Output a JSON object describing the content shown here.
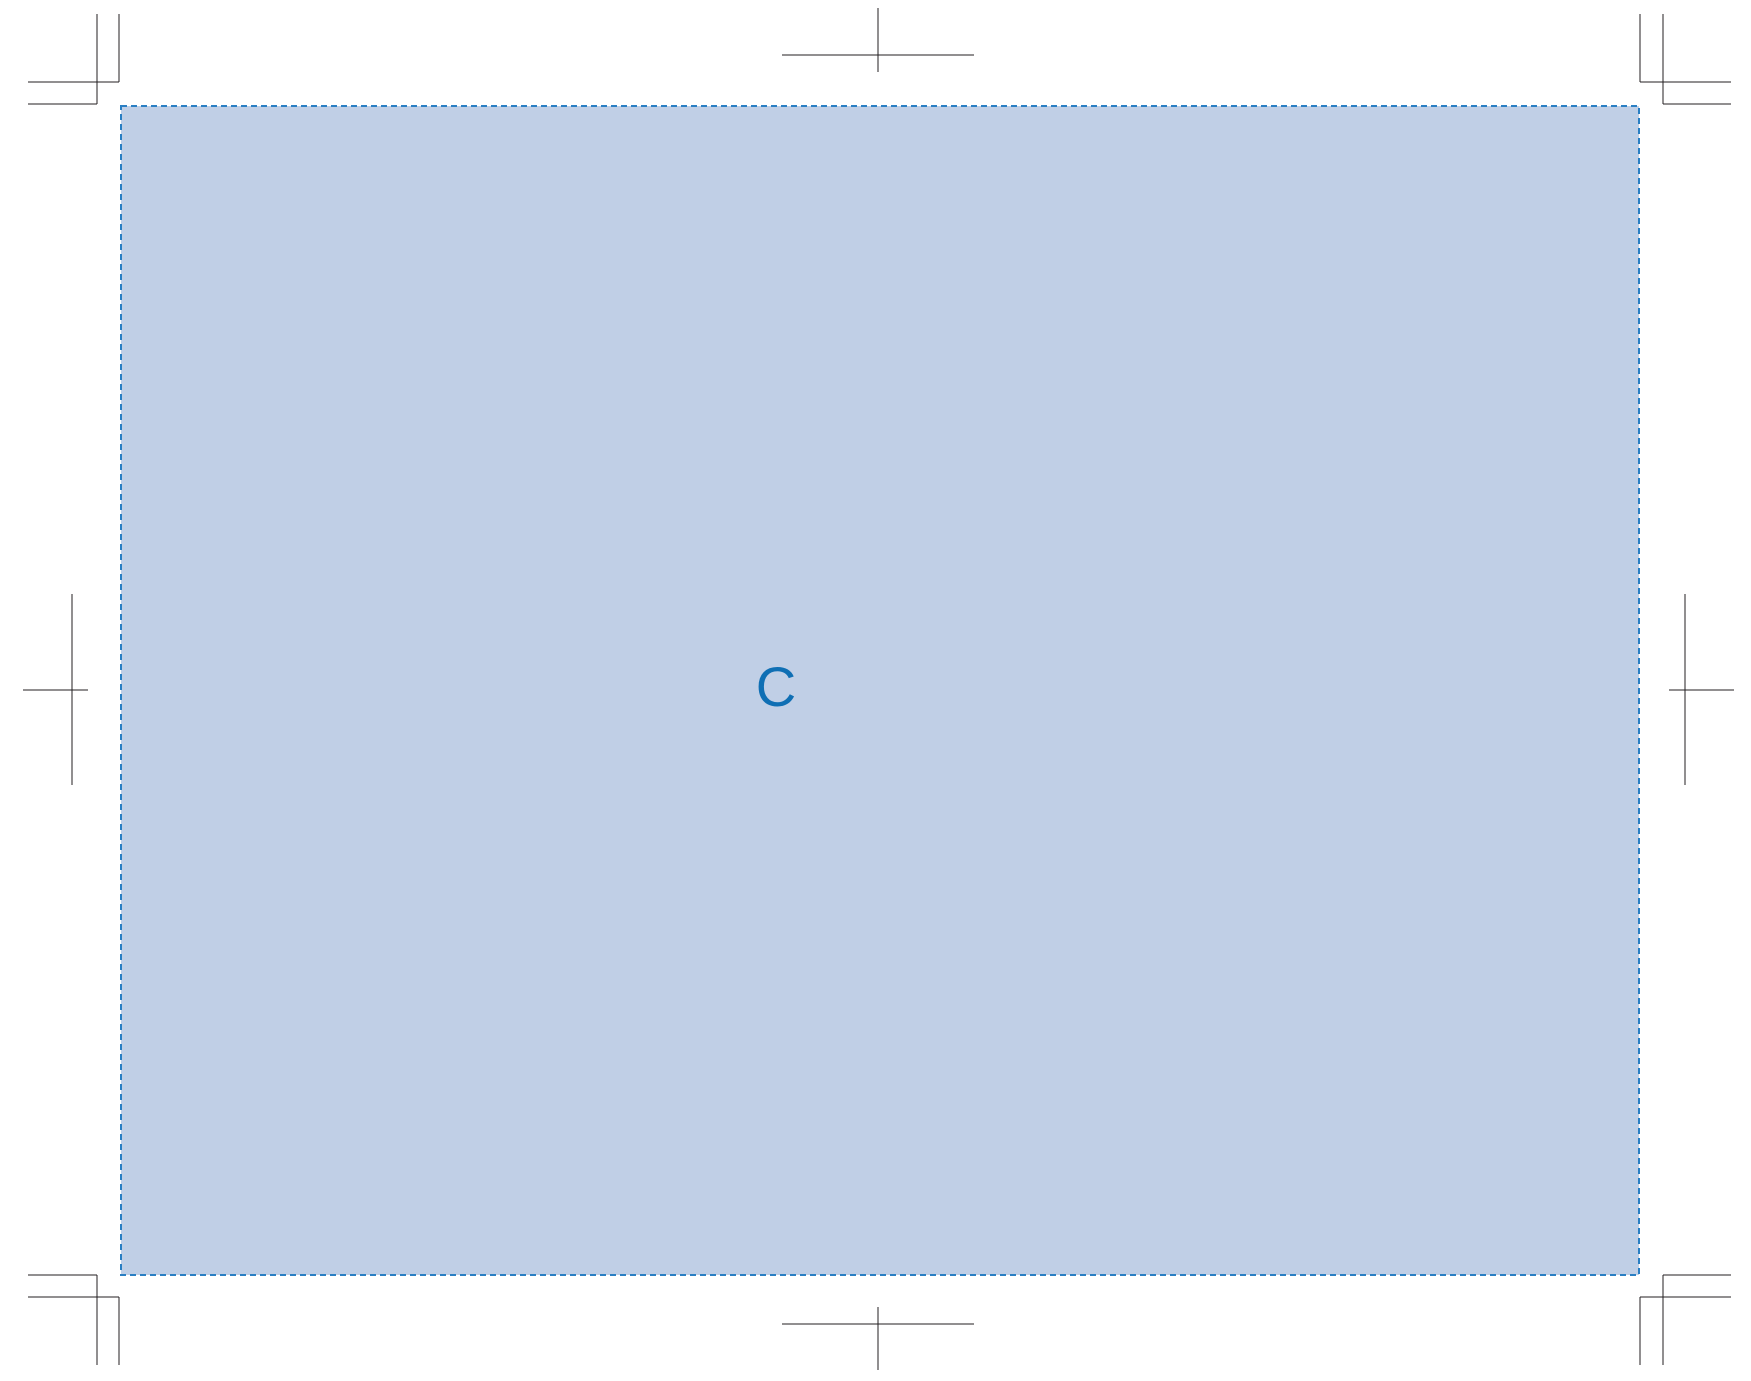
{
  "panel": {
    "label": "C",
    "fill_color": "#c0cfe6",
    "border_color": "#2a7fc3",
    "label_color": "#0f6fb4"
  },
  "marks": {
    "line_color": "#231f20",
    "corner_marks": [
      "top-left",
      "top-right",
      "bottom-left",
      "bottom-right"
    ],
    "registration_marks": [
      "top",
      "bottom",
      "left",
      "right"
    ]
  }
}
